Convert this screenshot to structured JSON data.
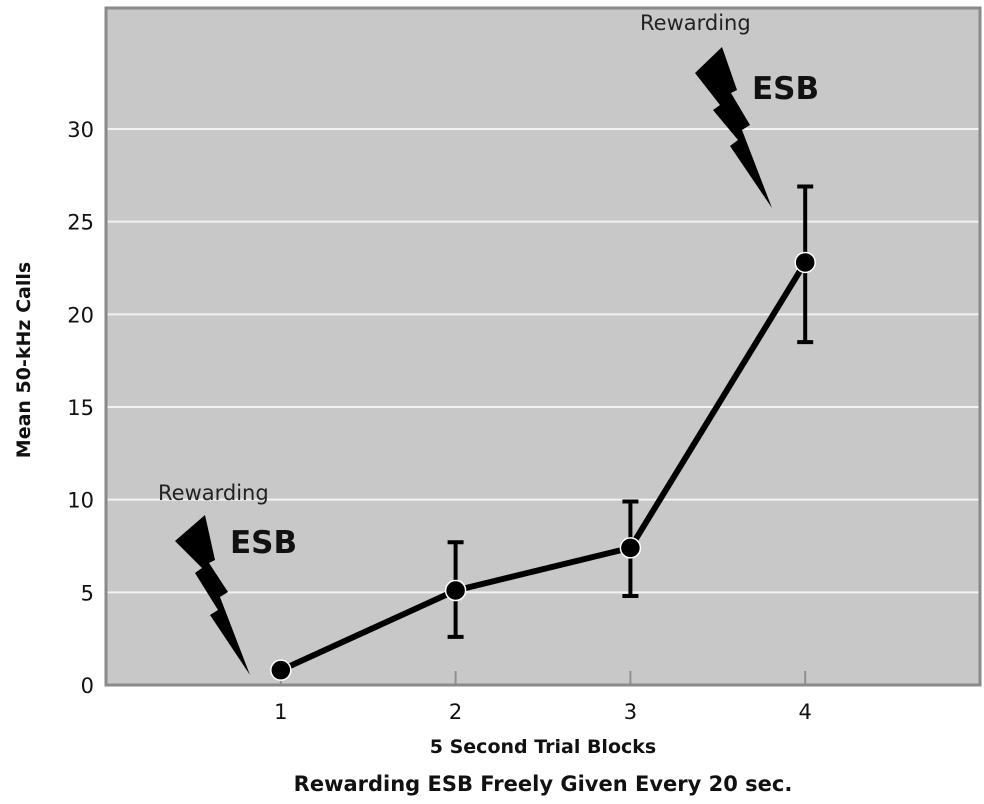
{
  "chart_data": {
    "type": "line",
    "title": "",
    "xlabel": "5 Second Trial Blocks",
    "subtitle": "Rewarding ESB Freely Given Every 20 sec.",
    "ylabel": "Mean 50-kHz Calls",
    "x": [
      1,
      2,
      3,
      4
    ],
    "xticks": [
      "1",
      "2",
      "3",
      "4"
    ],
    "xlim": [
      0,
      5
    ],
    "ylim": [
      0,
      30.5
    ],
    "yticks": [
      0,
      5,
      10,
      15,
      20,
      25,
      30
    ],
    "grid": true,
    "series": [
      {
        "name": "Mean 50-kHz Calls",
        "values": [
          0.8,
          5.1,
          7.4,
          22.8
        ],
        "error_low": [
          null,
          2.6,
          4.8,
          18.5
        ],
        "error_high": [
          null,
          7.7,
          9.9,
          26.9
        ]
      }
    ],
    "annotations": [
      {
        "label_small": "Rewarding",
        "label_big": "ESB",
        "points_to_x": 1,
        "icon": "lightning-bolt-icon"
      },
      {
        "label_small": "Rewarding",
        "label_big": "ESB",
        "points_to_x": 4,
        "icon": "lightning-bolt-icon"
      }
    ],
    "colors": {
      "background": "#c8c8c8",
      "grid": "#f2f2f2",
      "frame": "#8a8a8a",
      "line": "#000000"
    }
  }
}
